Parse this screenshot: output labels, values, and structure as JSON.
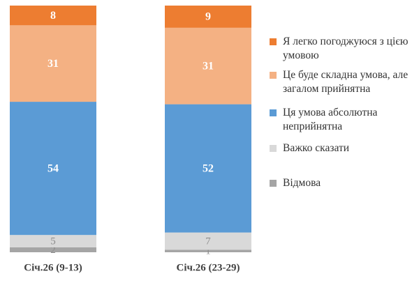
{
  "chart_data": {
    "type": "stacked-bar",
    "categories": [
      "Січ.26 (9-13)",
      "Січ.26 (23-29)"
    ],
    "ylim": [
      0,
      100
    ],
    "series": [
      {
        "name": "Відмова",
        "color": "#a5a5a5",
        "values": [
          2,
          1
        ]
      },
      {
        "name": "Важко сказати",
        "color": "#d9d9d9",
        "values": [
          5,
          7
        ]
      },
      {
        "name": "Ця умова абсолютна неприйнятна",
        "color": "#5b9bd5",
        "values": [
          54,
          52
        ]
      },
      {
        "name": "Це буде складна умова, але загалом прийнятна",
        "color": "#f4b183",
        "values": [
          31,
          31
        ]
      },
      {
        "name": "Я легко погоджуюся з цією умовою",
        "color": "#ed7d31",
        "values": [
          8,
          9
        ]
      }
    ]
  }
}
